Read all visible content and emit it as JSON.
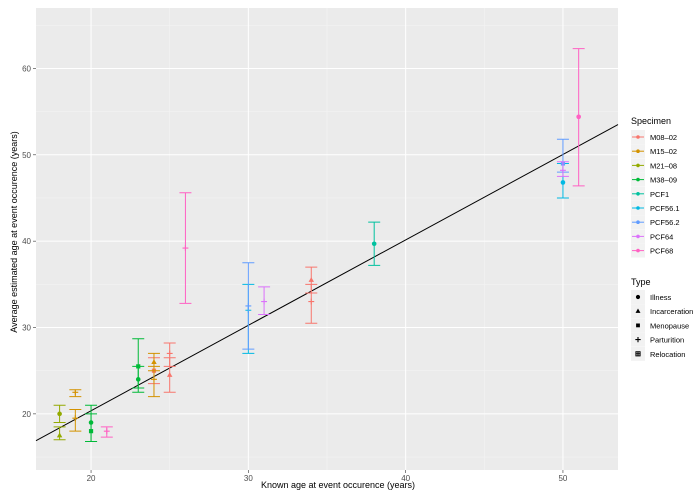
{
  "chart_data": {
    "type": "scatter",
    "xlabel": "Known age at event occurence (years)",
    "ylabel": "Average estimated age at event occurence (years)",
    "xlim": [
      16.5,
      53.5
    ],
    "ylim": [
      13.5,
      67
    ],
    "xticks": [
      20,
      30,
      40,
      50
    ],
    "yticks": [
      20,
      30,
      40,
      50,
      60
    ],
    "grid": true,
    "background": "#ebebeb",
    "legend_position": "right",
    "regression_line": {
      "x": [
        16.5,
        53.5
      ],
      "y": [
        16.9,
        53.5
      ],
      "color": "#000000"
    },
    "series": [
      {
        "name": "M08–02",
        "color": "#F8766D",
        "points": [
          {
            "x": 24.0,
            "y": 25.0,
            "lo": 23.5,
            "hi": 26.5,
            "shape": "square"
          },
          {
            "x": 25.0,
            "y": 24.5,
            "lo": 22.5,
            "hi": 26.5,
            "shape": "triangle"
          },
          {
            "x": 25.0,
            "y": 27.0,
            "lo": 25.5,
            "hi": 28.2,
            "shape": "cross"
          },
          {
            "x": 34.0,
            "y": 35.5,
            "lo": 34.0,
            "hi": 37.0,
            "shape": "triangle"
          },
          {
            "x": 34.0,
            "y": 33.0,
            "lo": 30.5,
            "hi": 35.0,
            "shape": "cross"
          }
        ]
      },
      {
        "name": "M15–02",
        "color": "#D39200",
        "points": [
          {
            "x": 19.0,
            "y": 22.5,
            "lo": 22.0,
            "hi": 22.8,
            "shape": "cross"
          },
          {
            "x": 19.0,
            "y": 19.5,
            "lo": 18.0,
            "hi": 20.5,
            "shape": "cross"
          },
          {
            "x": 24.0,
            "y": 26.0,
            "lo": 25.0,
            "hi": 27.0,
            "shape": "triangle"
          },
          {
            "x": 24.0,
            "y": 24.0,
            "lo": 22.0,
            "hi": 25.5,
            "shape": "cross"
          }
        ]
      },
      {
        "name": "M21–08",
        "color": "#93AA00",
        "points": [
          {
            "x": 18.0,
            "y": 20.0,
            "lo": 19.0,
            "hi": 21.0,
            "shape": "circle"
          },
          {
            "x": 18.0,
            "y": 17.5,
            "lo": 17.0,
            "hi": 18.5,
            "shape": "triangle"
          }
        ]
      },
      {
        "name": "M38–09",
        "color": "#00BA38",
        "points": [
          {
            "x": 20.0,
            "y": 19.0,
            "lo": 16.8,
            "hi": 21.0,
            "shape": "circle"
          },
          {
            "x": 20.0,
            "y": 18.0,
            "lo": 16.8,
            "hi": 20.0,
            "shape": "square"
          },
          {
            "x": 23.0,
            "y": 25.5,
            "lo": 22.5,
            "hi": 28.7,
            "shape": "square"
          },
          {
            "x": 23.0,
            "y": 24.0,
            "lo": 23.0,
            "hi": 25.5,
            "shape": "circle"
          }
        ]
      },
      {
        "name": "PCF1",
        "color": "#00C19F",
        "points": [
          {
            "x": 38.0,
            "y": 39.7,
            "lo": 37.2,
            "hi": 42.2,
            "shape": "circle"
          }
        ]
      },
      {
        "name": "PCF56.1",
        "color": "#00B9E3",
        "points": [
          {
            "x": 30.0,
            "y": 32.0,
            "lo": 27.0,
            "hi": 35.0,
            "shape": "cross"
          },
          {
            "x": 50.0,
            "y": 46.8,
            "lo": 45.0,
            "hi": 49.0,
            "shape": "circle"
          }
        ]
      },
      {
        "name": "PCF56.2",
        "color": "#619CFF",
        "points": [
          {
            "x": 30.0,
            "y": 32.5,
            "lo": 27.5,
            "hi": 37.5,
            "shape": "cross"
          },
          {
            "x": 50.0,
            "y": 49.0,
            "lo": 48.0,
            "hi": 51.8,
            "shape": "square"
          }
        ]
      },
      {
        "name": "PCF64",
        "color": "#DB72FB",
        "points": [
          {
            "x": 31.0,
            "y": 33.0,
            "lo": 31.5,
            "hi": 34.7,
            "shape": "cross"
          },
          {
            "x": 50.0,
            "y": 48.2,
            "lo": 47.5,
            "hi": 49.2,
            "shape": "cross"
          }
        ]
      },
      {
        "name": "PCF68",
        "color": "#FF61C3",
        "points": [
          {
            "x": 21.0,
            "y": 18.0,
            "lo": 17.3,
            "hi": 18.5,
            "shape": "cross"
          },
          {
            "x": 26.0,
            "y": 39.2,
            "lo": 32.8,
            "hi": 45.6,
            "shape": "cross"
          },
          {
            "x": 51.0,
            "y": 54.4,
            "lo": 46.4,
            "hi": 62.3,
            "shape": "circle"
          }
        ]
      }
    ],
    "legends": {
      "specimen": {
        "title": "Specimen",
        "entries": [
          {
            "label": "M08–02",
            "color": "#F8766D"
          },
          {
            "label": "M15–02",
            "color": "#D39200"
          },
          {
            "label": "M21–08",
            "color": "#93AA00"
          },
          {
            "label": "M38–09",
            "color": "#00BA38"
          },
          {
            "label": "PCF1",
            "color": "#00C19F"
          },
          {
            "label": "PCF56.1",
            "color": "#00B9E3"
          },
          {
            "label": "PCF56.2",
            "color": "#619CFF"
          },
          {
            "label": "PCF64",
            "color": "#DB72FB"
          },
          {
            "label": "PCF68",
            "color": "#FF61C3"
          }
        ]
      },
      "type": {
        "title": "Type",
        "entries": [
          {
            "label": "Illness",
            "shape": "circle"
          },
          {
            "label": "Incarceration",
            "shape": "triangle"
          },
          {
            "label": "Menopause",
            "shape": "square"
          },
          {
            "label": "Parturition",
            "shape": "cross"
          },
          {
            "label": "Relocation",
            "shape": "boxed-cross"
          }
        ]
      }
    }
  }
}
